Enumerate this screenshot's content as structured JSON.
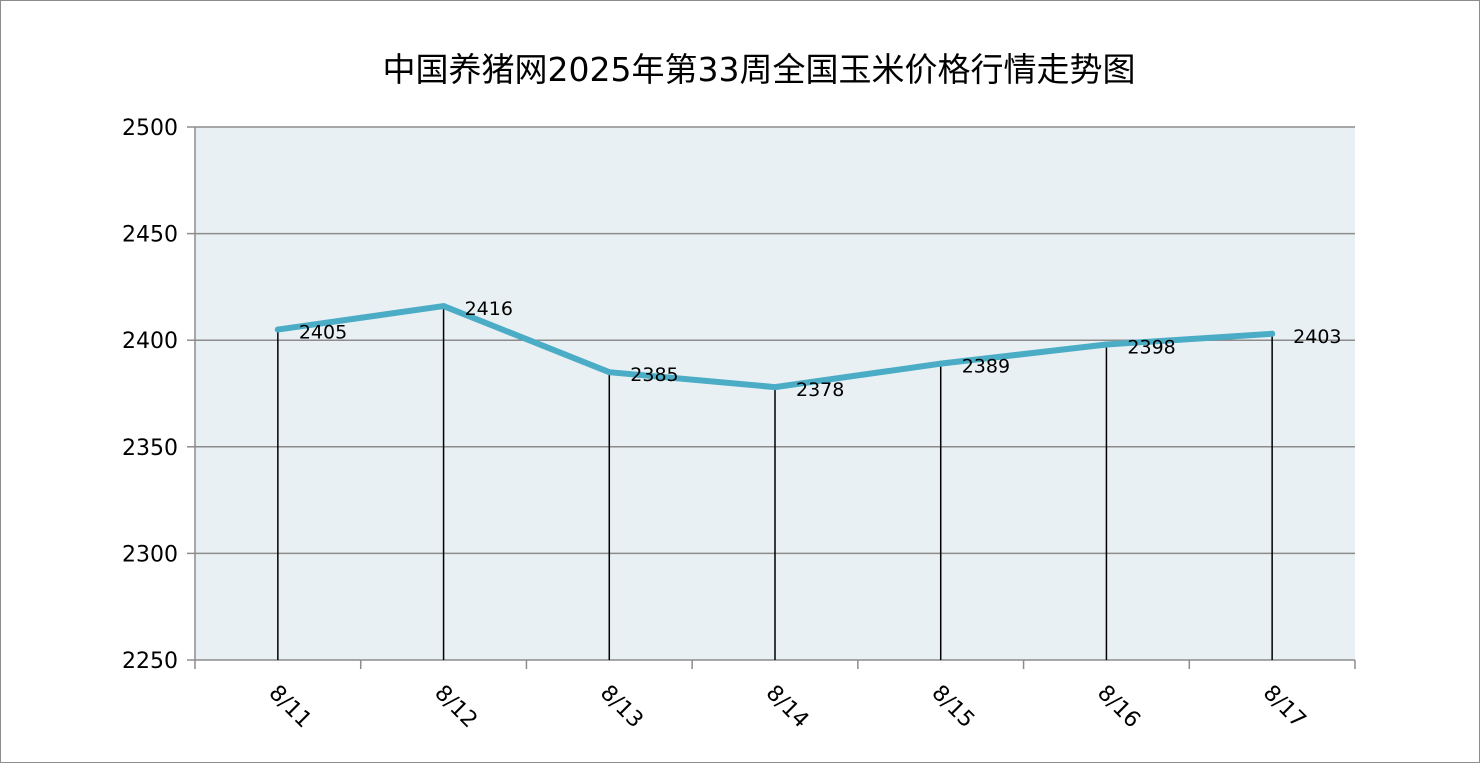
{
  "chart_data": {
    "type": "line",
    "title": "中国养猪网2025年第33周全国玉米价格行情走势图",
    "categories": [
      "8/11",
      "8/12",
      "8/13",
      "8/14",
      "8/15",
      "8/16",
      "8/17"
    ],
    "series": [
      {
        "values": [
          2405,
          2416,
          2385,
          2378,
          2389,
          2398,
          2403
        ]
      }
    ],
    "data_labels": [
      "2405",
      "2416",
      "2385",
      "2378",
      "2389",
      "2398",
      "2403"
    ],
    "ylim": [
      2250,
      2500
    ],
    "yticks": [
      2250,
      2300,
      2350,
      2400,
      2450,
      2500
    ],
    "ytick_labels": [
      "2250",
      "2300",
      "2350",
      "2400",
      "2450",
      "2500"
    ],
    "grid": true,
    "legend": "none",
    "drop_lines": true,
    "colors": {
      "line": "#4bacc6",
      "plot_background": "#e8f0f3",
      "grid": "#8c8c8c",
      "drop_line": "#000000",
      "axis": "#8c8c8c"
    }
  }
}
